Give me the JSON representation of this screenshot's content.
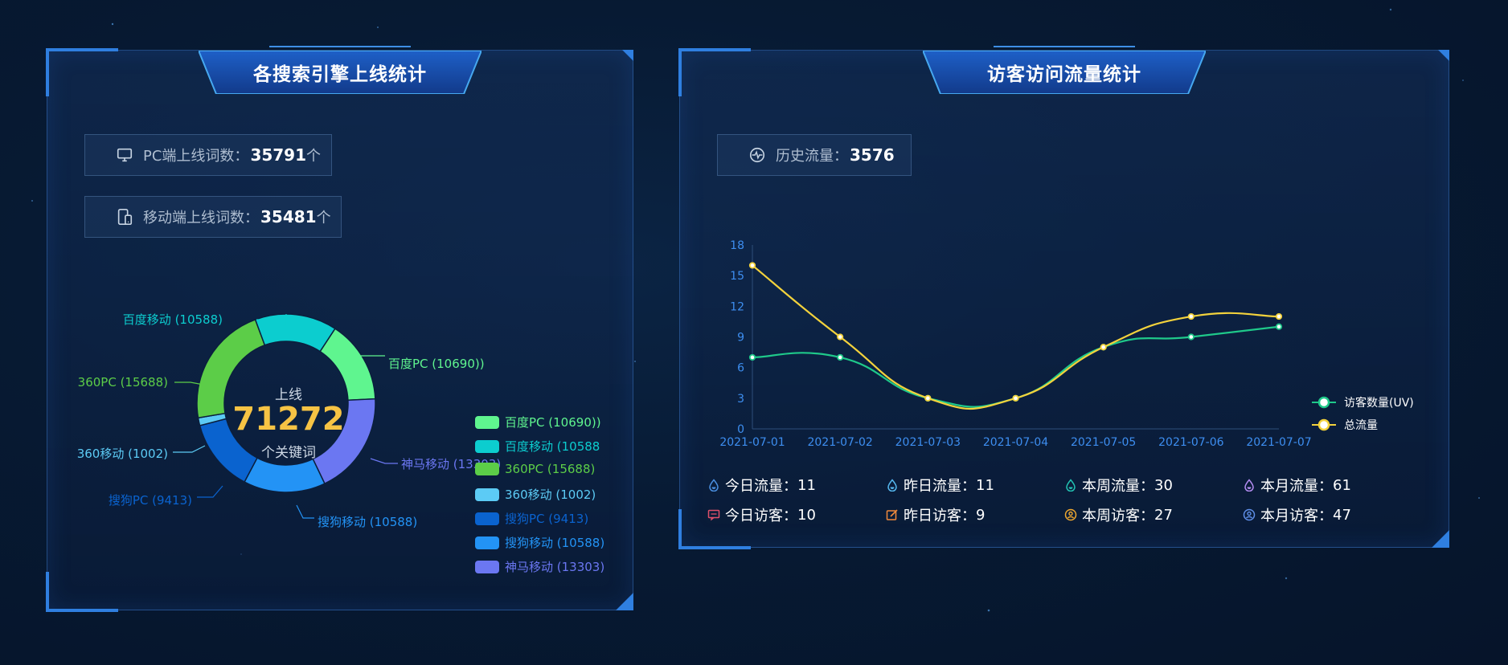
{
  "left_panel": {
    "title": "各搜索引擎上线统计",
    "pc": {
      "label": "PC端上线词数：",
      "value": "35791",
      "unit": "个"
    },
    "mobile": {
      "label": "移动端上线词数：",
      "value": "35481",
      "unit": "个"
    },
    "center": {
      "top": "上线",
      "total": "71272",
      "bottom": "个关键词"
    }
  },
  "right_panel": {
    "title": "访客访问流量统计",
    "history": {
      "label": "历史流量：",
      "value": "3576"
    },
    "kpis": [
      {
        "label": "今日流量：",
        "value": "11",
        "icon": "drop-icon",
        "color": "#4a90e2"
      },
      {
        "label": "昨日流量：",
        "value": "11",
        "icon": "drop-icon",
        "color": "#55b8f0"
      },
      {
        "label": "本周流量：",
        "value": "30",
        "icon": "drop-icon",
        "color": "#22c3b3"
      },
      {
        "label": "本月流量：",
        "value": "61",
        "icon": "drop-icon",
        "color": "#b48cf2"
      },
      {
        "label": "今日访客：",
        "value": "10",
        "icon": "chat-icon",
        "color": "#e0506a"
      },
      {
        "label": "昨日访客：",
        "value": "9",
        "icon": "edit-icon",
        "color": "#f28a3c"
      },
      {
        "label": "本周访客：",
        "value": "27",
        "icon": "user-circle-icon",
        "color": "#f0a830"
      },
      {
        "label": "本月访客：",
        "value": "47",
        "icon": "user-icon",
        "color": "#5f8fe8"
      }
    ]
  },
  "chart_data": [
    {
      "type": "pie",
      "slices": [
        {
          "label": "百度PC (10690))",
          "value": 10690,
          "color": "#5ff58f"
        },
        {
          "label": "神马移动 (13303)",
          "value": 13303,
          "color": "#6b77f2"
        },
        {
          "label": "搜狗移动 (10588)",
          "value": 10588,
          "color": "#2393f5"
        },
        {
          "label": "搜狗PC (9413)",
          "value": 9413,
          "color": "#0a63cf"
        },
        {
          "label": "360移动 (1002)",
          "value": 1002,
          "color": "#5ccbf5"
        },
        {
          "label": "360PC (15688)",
          "value": 15688,
          "color": "#5ccd48"
        },
        {
          "label": "百度移动 (10588",
          "value": 10588,
          "color": "#0ccdcf"
        }
      ],
      "callouts": [
        {
          "label": "百度移动 (10588)"
        },
        {
          "label": "百度PC (10690))"
        },
        {
          "label": "360PC (15688)"
        },
        {
          "label": "360移动 (1002)"
        },
        {
          "label": "神马移动 (13303)"
        },
        {
          "label": "搜狗PC (9413)"
        },
        {
          "label": "搜狗移动 (10588)"
        }
      ],
      "legend": [
        {
          "label": "百度PC (10690))",
          "color": "#5ff58f"
        },
        {
          "label": "百度移动 (10588",
          "color": "#0ccdcf"
        },
        {
          "label": "360PC (15688)",
          "color": "#5ccd48"
        },
        {
          "label": "360移动 (1002)",
          "color": "#5ccbf5"
        },
        {
          "label": "搜狗PC (9413)",
          "color": "#0a63cf"
        },
        {
          "label": "搜狗移动 (10588)",
          "color": "#2393f5"
        },
        {
          "label": "神马移动 (13303)",
          "color": "#6b77f2"
        }
      ],
      "legend_placement": "bottom-right"
    },
    {
      "type": "line",
      "x": [
        "2021-07-01",
        "2021-07-02",
        "2021-07-03",
        "2021-07-04",
        "2021-07-05",
        "2021-07-06",
        "2021-07-07"
      ],
      "series": [
        {
          "name": "访客数量(UV)",
          "values": [
            7,
            7,
            3,
            3,
            8,
            9,
            10
          ],
          "color": "#1fc98a"
        },
        {
          "name": "总流量",
          "values": [
            16,
            9,
            3,
            3,
            8,
            11,
            11
          ],
          "color": "#f3d23c"
        }
      ],
      "ylim": [
        0,
        18
      ],
      "yticks": [
        0,
        3,
        6,
        9,
        12,
        15,
        18
      ],
      "grid": false,
      "legend_placement": "right"
    }
  ]
}
